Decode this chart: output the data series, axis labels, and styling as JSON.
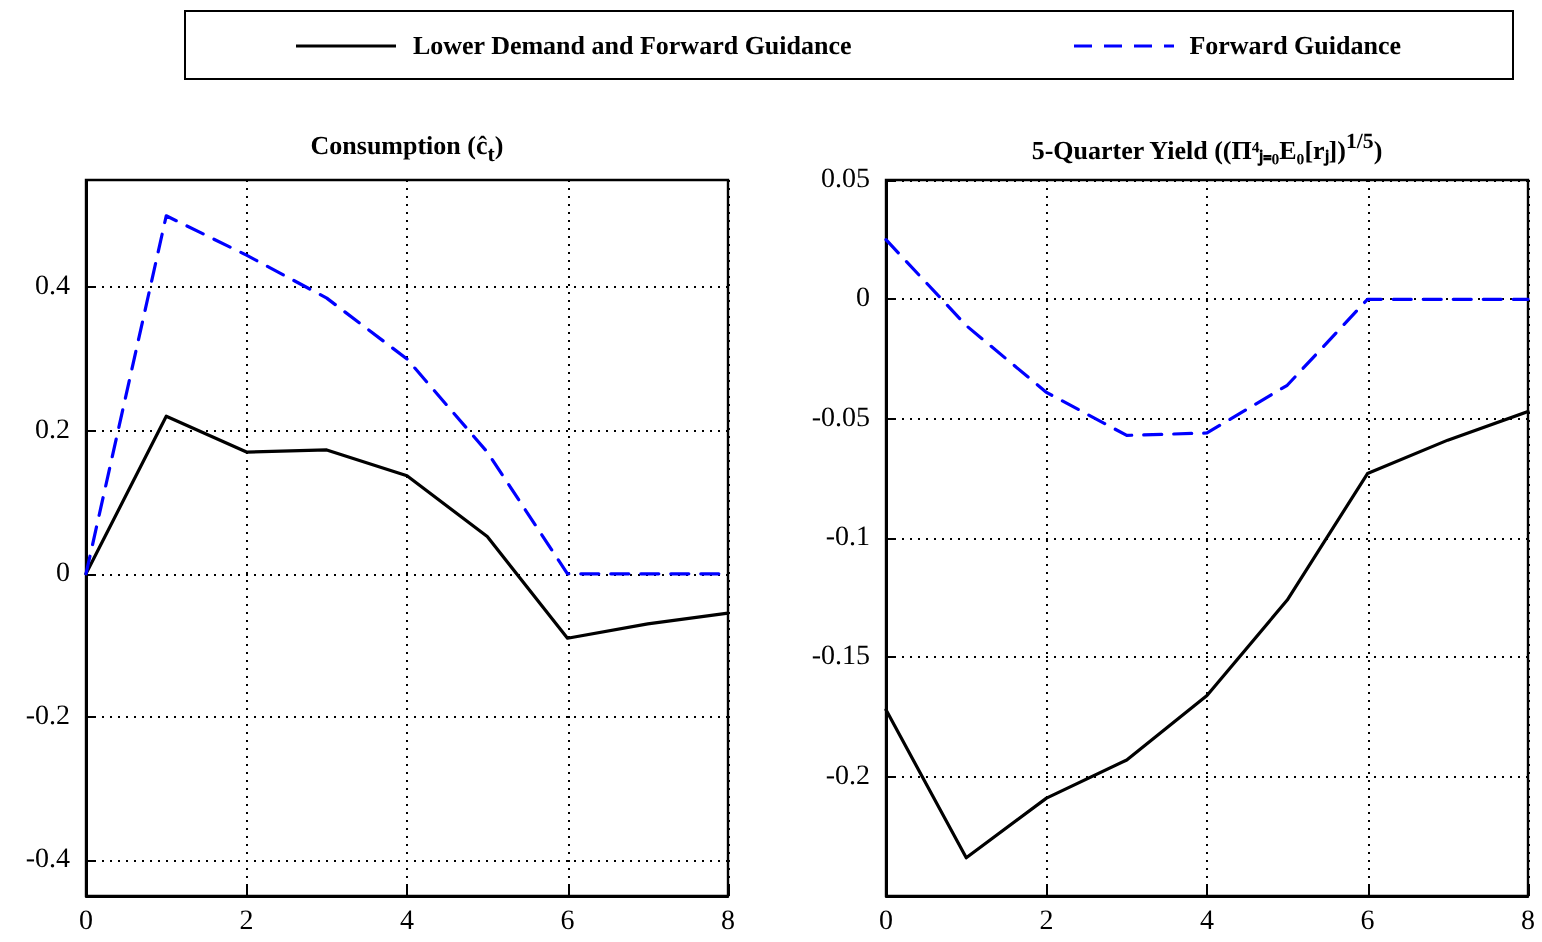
{
  "chart_data": [
    {
      "type": "line",
      "title": "Consumption (ĉ$_{t}$)",
      "x": [
        0,
        1,
        2,
        3,
        4,
        5,
        6,
        7,
        8
      ],
      "xlim": [
        0,
        8
      ],
      "xticks": [
        0,
        2,
        4,
        6,
        8
      ],
      "ylim": [
        -0.45,
        0.55
      ],
      "yticks": [
        -0.4,
        -0.2,
        0,
        0.2,
        0.4
      ],
      "grid": true,
      "legend": "top",
      "marker": "none",
      "series": [
        {
          "name": "Lower Demand and Forward Guidance",
          "color": "#000000",
          "line_style": "solid",
          "values": [
            0,
            0.22,
            0.17,
            0.173,
            0.137,
            0.052,
            -0.09,
            -0.07,
            -0.055
          ]
        },
        {
          "name": "Forward Guidance",
          "color": "#0000ff",
          "line_style": "dashed",
          "values": [
            0,
            0.5,
            0.445,
            0.385,
            0.3,
            0.17,
            0,
            0,
            0
          ]
        }
      ]
    },
    {
      "type": "line",
      "title": "5-Quarter Yield ((Π⁴ⱼ₌₀E₀[rⱼ])$^{1/5}$)",
      "x": [
        0,
        1,
        2,
        3,
        4,
        5,
        6,
        7,
        8
      ],
      "xlim": [
        0,
        8
      ],
      "xticks": [
        0,
        2,
        4,
        6,
        8
      ],
      "ylim": [
        -0.25,
        0.05
      ],
      "yticks": [
        -0.2,
        -0.15,
        -0.1,
        -0.05,
        0,
        0.05
      ],
      "grid": true,
      "legend": "top",
      "marker": "none",
      "series": [
        {
          "name": "Lower Demand and Forward Guidance",
          "color": "#000000",
          "line_style": "solid",
          "values": [
            -0.172,
            -0.234,
            -0.209,
            -0.193,
            -0.166,
            -0.126,
            -0.073,
            -0.059,
            -0.047
          ]
        },
        {
          "name": "Forward Guidance",
          "color": "#0000ff",
          "line_style": "dashed",
          "values": [
            0.025,
            -0.011,
            -0.039,
            -0.057,
            -0.056,
            -0.036,
            0,
            0,
            0
          ]
        }
      ]
    }
  ]
}
